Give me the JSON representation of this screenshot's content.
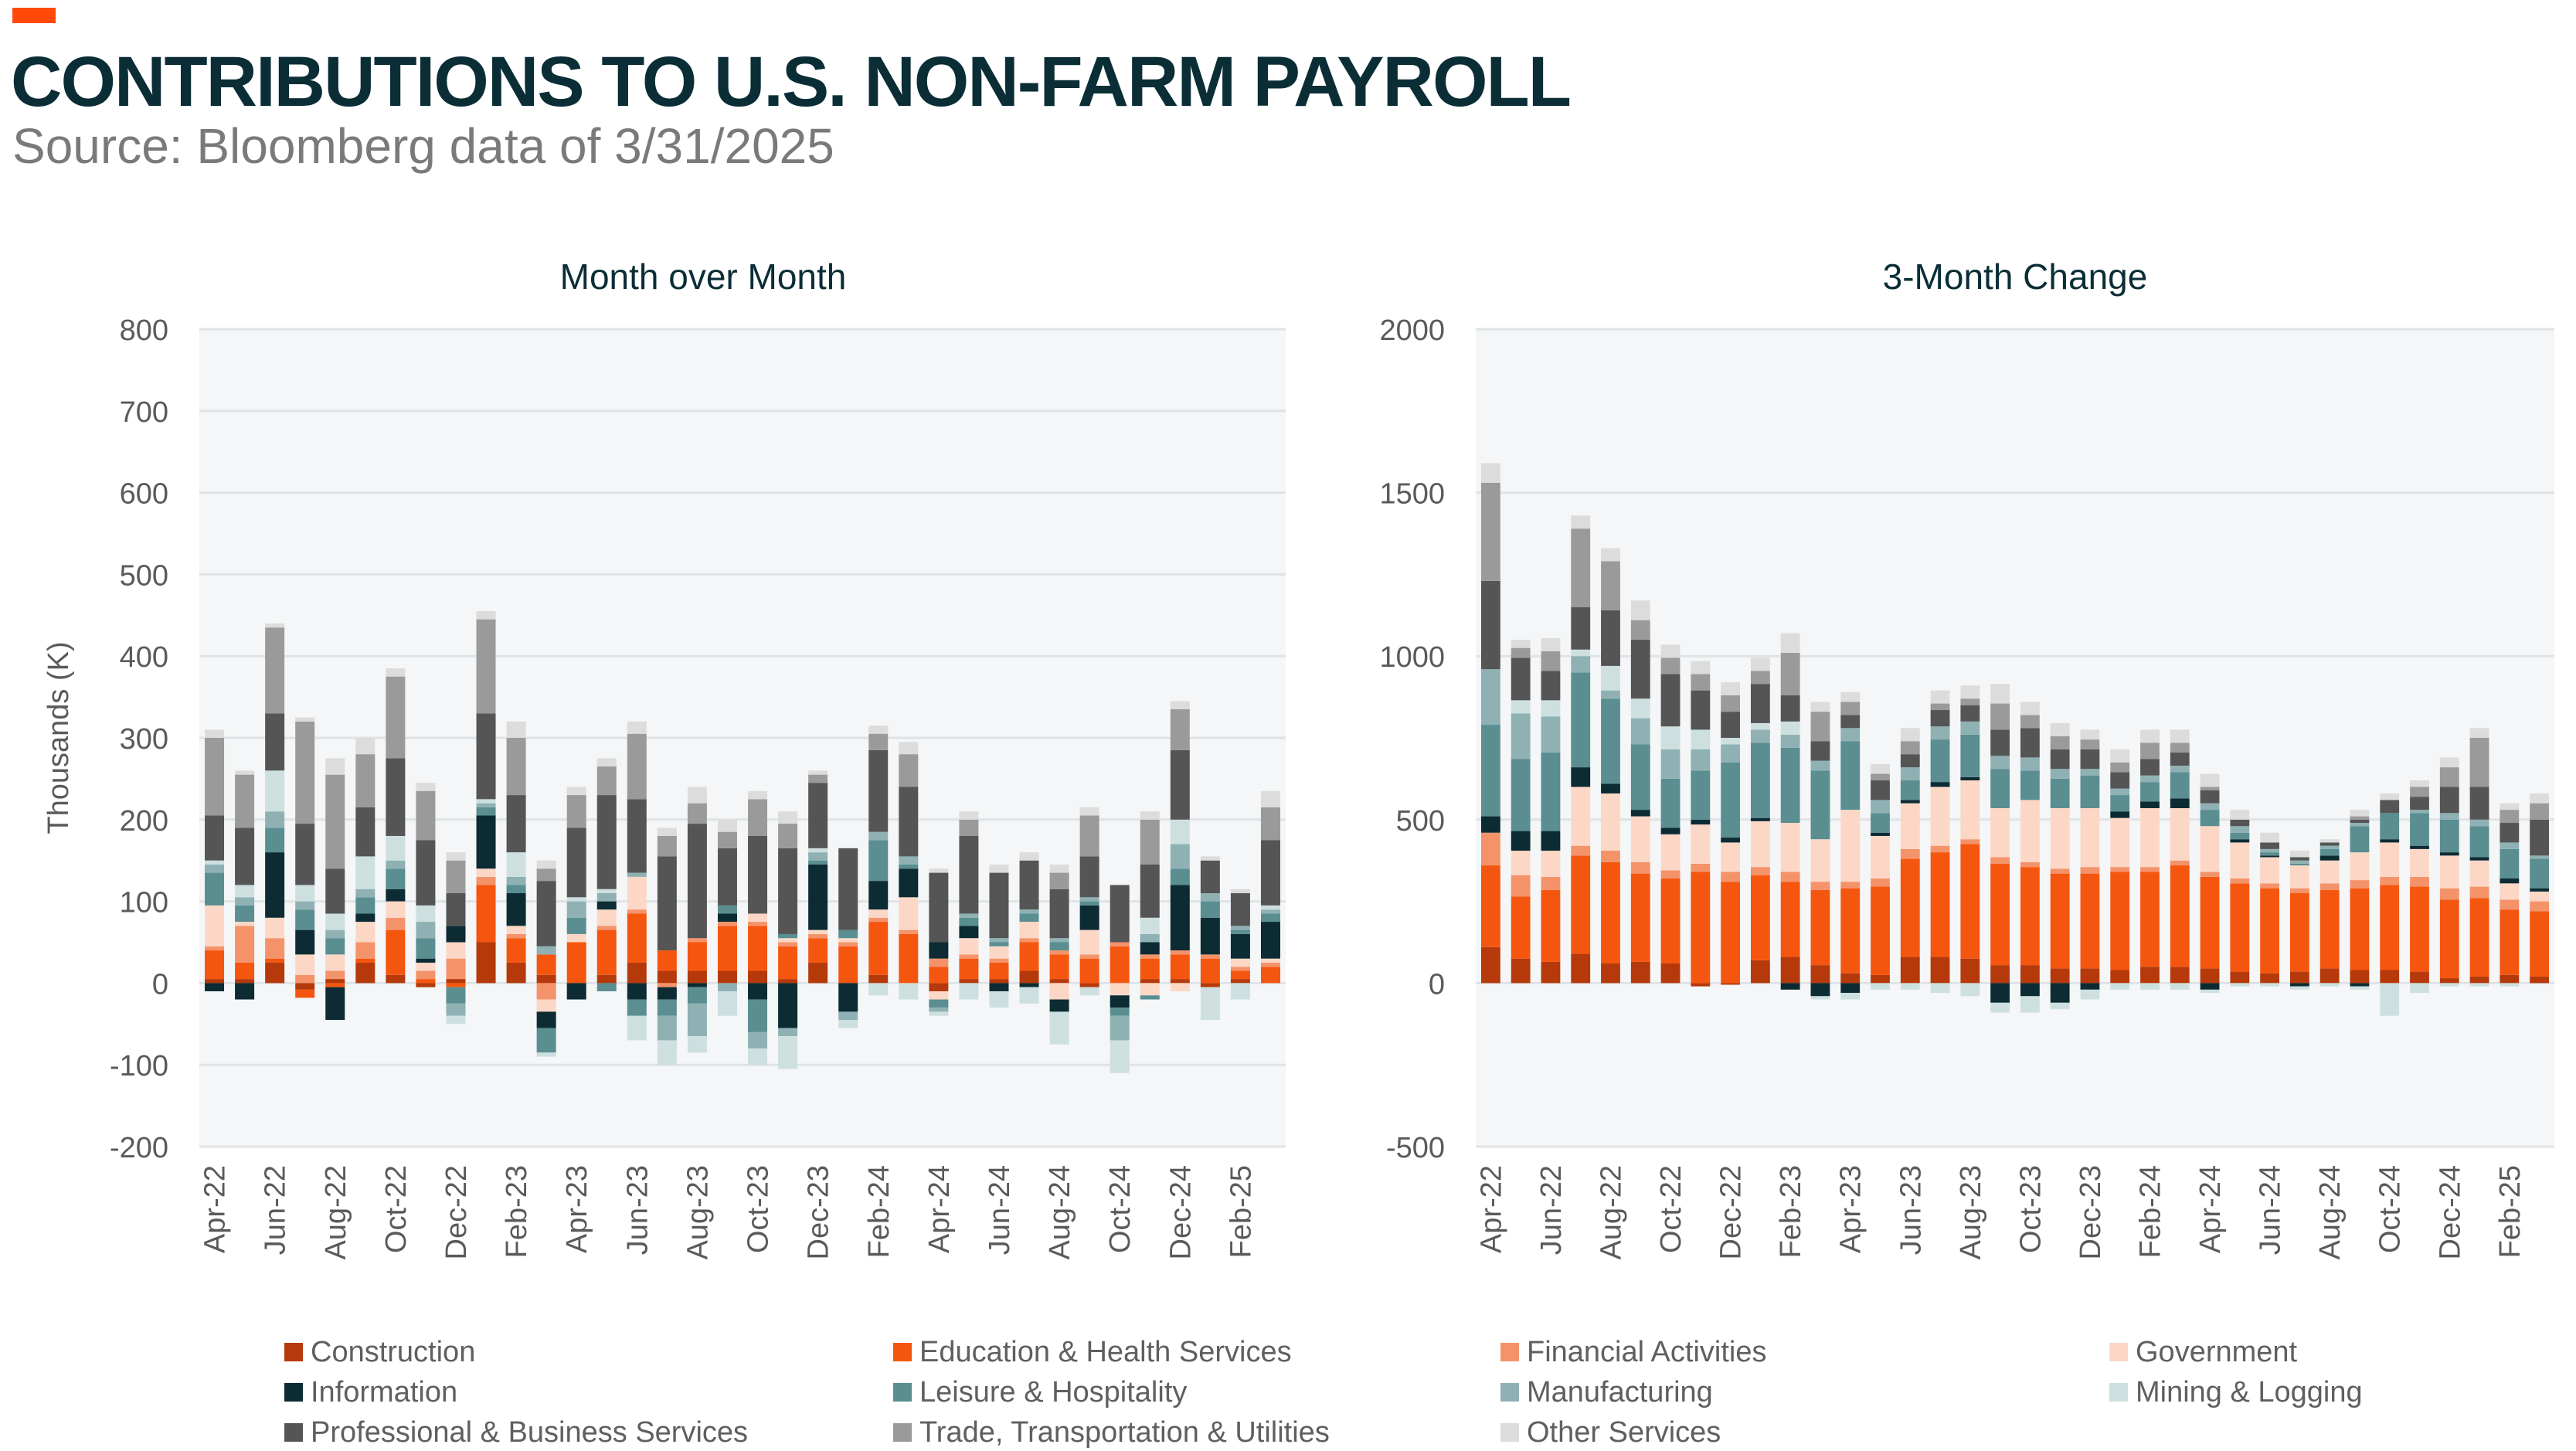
{
  "header": {
    "title": "CONTRIBUTIONS TO U.S. NON-FARM PAYROLL",
    "subtitle": "Source: Bloomberg data of 3/31/2025",
    "accent_color": "#ff4a0a"
  },
  "colors": {
    "title": "#0b2e36",
    "plot_bg": "#f4f6f7",
    "grid": "#dfe3e5",
    "axis_text": "#5a5a5a"
  },
  "legend": [
    {
      "name": "Construction",
      "color": "#b5390b"
    },
    {
      "name": "Education & Health Services",
      "color": "#f5560f"
    },
    {
      "name": "Financial Activities",
      "color": "#f4936a"
    },
    {
      "name": "Government",
      "color": "#fcd7c6"
    },
    {
      "name": "Information",
      "color": "#0c2b33"
    },
    {
      "name": "Leisure & Hospitality",
      "color": "#5a8e91"
    },
    {
      "name": "Manufacturing",
      "color": "#8fb1b3"
    },
    {
      "name": "Mining & Logging",
      "color": "#cde0df"
    },
    {
      "name": "Professional & Business Services",
      "color": "#555555"
    },
    {
      "name": "Trade, Transportation & Utilities",
      "color": "#9a9a9a"
    },
    {
      "name": "Other Services",
      "color": "#dcdcdc"
    }
  ],
  "chart_data": [
    {
      "type": "bar",
      "stacked": true,
      "title": "Month over Month",
      "ylabel": "Thousands (K)",
      "ylim": [
        -200,
        800
      ],
      "yticks": [
        "800",
        "700",
        "600",
        "500",
        "400",
        "300",
        "200",
        "100",
        "0",
        "-100",
        "-200"
      ],
      "tick_values": [
        800,
        700,
        600,
        500,
        400,
        300,
        200,
        100,
        0,
        -100,
        -200
      ],
      "grid": true,
      "categories": [
        "Apr-22",
        "May-22",
        "Jun-22",
        "Jul-22",
        "Aug-22",
        "Sep-22",
        "Oct-22",
        "Nov-22",
        "Dec-22",
        "Jan-23",
        "Feb-23",
        "Mar-23",
        "Apr-23",
        "May-23",
        "Jun-23",
        "Jul-23",
        "Aug-23",
        "Sep-23",
        "Oct-23",
        "Nov-23",
        "Dec-23",
        "Jan-24",
        "Feb-24",
        "Mar-24",
        "Apr-24",
        "May-24",
        "Jun-24",
        "Jul-24",
        "Aug-24",
        "Sep-24",
        "Oct-24",
        "Nov-24",
        "Dec-24",
        "Jan-25",
        "Feb-25",
        "Mar-25"
      ],
      "tick_labels": [
        "Apr-22",
        "Jun-22",
        "Aug-22",
        "Oct-22",
        "Dec-22",
        "Feb-23",
        "Apr-23",
        "Jun-23",
        "Aug-23",
        "Oct-23",
        "Dec-23",
        "Feb-24",
        "Apr-24",
        "Jun-24",
        "Aug-24",
        "Oct-24",
        "Dec-24",
        "Feb-25"
      ],
      "series": [
        {
          "name": "Construction",
          "values": [
            5,
            5,
            25,
            -8,
            5,
            25,
            10,
            -5,
            5,
            50,
            25,
            10,
            0,
            10,
            25,
            15,
            15,
            15,
            15,
            5,
            25,
            0,
            10,
            0,
            -10,
            5,
            5,
            15,
            5,
            -5,
            0,
            5,
            5,
            -5,
            5,
            0
          ]
        },
        {
          "name": "Education & Health Services",
          "values": [
            35,
            20,
            5,
            -10,
            -5,
            5,
            55,
            5,
            -5,
            70,
            30,
            25,
            50,
            55,
            60,
            25,
            35,
            55,
            55,
            40,
            30,
            45,
            65,
            60,
            20,
            25,
            20,
            35,
            30,
            30,
            45,
            25,
            30,
            30,
            10,
            20
          ]
        },
        {
          "name": "Financial Activities",
          "values": [
            5,
            45,
            25,
            10,
            10,
            20,
            15,
            10,
            25,
            10,
            5,
            -20,
            0,
            5,
            5,
            -5,
            5,
            5,
            5,
            5,
            5,
            5,
            5,
            5,
            10,
            5,
            5,
            5,
            5,
            5,
            5,
            5,
            5,
            5,
            5,
            5
          ]
        },
        {
          "name": "Government",
          "values": [
            50,
            5,
            25,
            25,
            20,
            25,
            20,
            10,
            20,
            10,
            10,
            -15,
            10,
            20,
            40,
            0,
            0,
            0,
            10,
            5,
            5,
            5,
            10,
            40,
            -10,
            20,
            15,
            20,
            -20,
            30,
            -15,
            -15,
            -10,
            0,
            10,
            5
          ]
        },
        {
          "name": "Information",
          "values": [
            -10,
            -20,
            80,
            30,
            -40,
            10,
            15,
            5,
            20,
            65,
            40,
            -20,
            -20,
            10,
            -20,
            -15,
            -5,
            10,
            -20,
            -55,
            80,
            -35,
            35,
            35,
            20,
            15,
            -10,
            -5,
            -15,
            30,
            -15,
            15,
            80,
            45,
            30,
            45
          ]
        },
        {
          "name": "Leisure & Hospitality",
          "values": [
            40,
            20,
            30,
            25,
            20,
            20,
            25,
            25,
            -20,
            10,
            10,
            -30,
            20,
            -10,
            -20,
            -20,
            -20,
            10,
            -40,
            5,
            5,
            10,
            50,
            5,
            -10,
            10,
            5,
            10,
            10,
            5,
            -10,
            -5,
            20,
            20,
            5,
            10
          ]
        },
        {
          "name": "Manufacturing",
          "values": [
            10,
            10,
            20,
            10,
            10,
            10,
            10,
            20,
            -15,
            5,
            10,
            10,
            20,
            10,
            5,
            -30,
            -40,
            -10,
            -20,
            -10,
            10,
            -10,
            10,
            10,
            -5,
            5,
            5,
            5,
            5,
            5,
            -30,
            10,
            30,
            10,
            5,
            5
          ]
        },
        {
          "name": "Mining & Logging",
          "values": [
            5,
            15,
            50,
            20,
            20,
            40,
            30,
            20,
            -10,
            5,
            30,
            -5,
            5,
            5,
            -30,
            -30,
            -20,
            -30,
            -20,
            -40,
            5,
            -10,
            -15,
            -20,
            -5,
            -20,
            -20,
            -20,
            -40,
            -10,
            -40,
            20,
            30,
            -40,
            -20,
            5
          ]
        },
        {
          "name": "Professional & Business Services",
          "values": [
            55,
            70,
            70,
            75,
            55,
            60,
            95,
            80,
            40,
            105,
            70,
            80,
            85,
            115,
            90,
            115,
            140,
            70,
            95,
            105,
            80,
            100,
            100,
            85,
            85,
            95,
            80,
            60,
            60,
            50,
            70,
            65,
            85,
            40,
            40,
            80
          ]
        },
        {
          "name": "Trade, Transportation & Utilities",
          "values": [
            95,
            65,
            105,
            125,
            115,
            65,
            100,
            60,
            40,
            115,
            70,
            15,
            40,
            35,
            80,
            25,
            25,
            20,
            45,
            30,
            10,
            0,
            20,
            40,
            0,
            20,
            0,
            0,
            20,
            50,
            0,
            55,
            50,
            0,
            0,
            40
          ]
        },
        {
          "name": "Other Services",
          "values": [
            10,
            5,
            5,
            5,
            20,
            20,
            10,
            10,
            10,
            10,
            20,
            10,
            10,
            10,
            15,
            10,
            20,
            15,
            10,
            15,
            5,
            0,
            10,
            15,
            5,
            10,
            10,
            10,
            10,
            10,
            0,
            10,
            10,
            5,
            5,
            20
          ]
        }
      ]
    },
    {
      "type": "bar",
      "stacked": true,
      "title": "3-Month Change",
      "ylabel": "",
      "ylim": [
        -500,
        2000
      ],
      "yticks": [
        "2000",
        "1500",
        "1000",
        "500",
        "0",
        "-500"
      ],
      "tick_values": [
        2000,
        1500,
        1000,
        500,
        0,
        -500
      ],
      "grid": true,
      "categories": [
        "Apr-22",
        "May-22",
        "Jun-22",
        "Jul-22",
        "Aug-22",
        "Sep-22",
        "Oct-22",
        "Nov-22",
        "Dec-22",
        "Jan-23",
        "Feb-23",
        "Mar-23",
        "Apr-23",
        "May-23",
        "Jun-23",
        "Jul-23",
        "Aug-23",
        "Sep-23",
        "Oct-23",
        "Nov-23",
        "Dec-23",
        "Jan-24",
        "Feb-24",
        "Mar-24",
        "Apr-24",
        "May-24",
        "Jun-24",
        "Jul-24",
        "Aug-24",
        "Sep-24",
        "Oct-24",
        "Nov-24",
        "Dec-24",
        "Jan-25",
        "Feb-25",
        "Mar-25"
      ],
      "tick_labels": [
        "Apr-22",
        "Jun-22",
        "Aug-22",
        "Oct-22",
        "Dec-22",
        "Feb-23",
        "Apr-23",
        "Jun-23",
        "Aug-23",
        "Oct-23",
        "Dec-23",
        "Feb-24",
        "Apr-24",
        "Jun-24",
        "Aug-24",
        "Oct-24",
        "Dec-24",
        "Feb-25"
      ],
      "series": [
        {
          "name": "Construction",
          "values": [
            110,
            75,
            65,
            90,
            60,
            65,
            60,
            -10,
            -5,
            70,
            80,
            55,
            30,
            25,
            80,
            80,
            75,
            55,
            55,
            45,
            45,
            40,
            50,
            50,
            45,
            35,
            30,
            35,
            45,
            40,
            40,
            35,
            15,
            20,
            25,
            20
          ]
        },
        {
          "name": "Education & Health Services",
          "values": [
            250,
            190,
            220,
            300,
            310,
            270,
            260,
            340,
            310,
            260,
            230,
            230,
            260,
            270,
            300,
            320,
            350,
            310,
            300,
            290,
            290,
            300,
            290,
            310,
            280,
            270,
            260,
            240,
            240,
            250,
            260,
            260,
            240,
            240,
            200,
            200
          ]
        },
        {
          "name": "Financial Activities",
          "values": [
            100,
            65,
            40,
            30,
            35,
            35,
            25,
            25,
            30,
            25,
            30,
            25,
            20,
            25,
            30,
            20,
            15,
            20,
            15,
            15,
            20,
            15,
            15,
            15,
            15,
            15,
            15,
            15,
            20,
            25,
            25,
            30,
            35,
            35,
            30,
            30
          ]
        },
        {
          "name": "Government",
          "values": [
            0,
            75,
            80,
            180,
            175,
            140,
            110,
            120,
            90,
            140,
            150,
            130,
            220,
            130,
            140,
            180,
            180,
            150,
            190,
            185,
            180,
            150,
            180,
            160,
            140,
            110,
            80,
            70,
            70,
            85,
            105,
            85,
            100,
            80,
            50,
            30
          ]
        },
        {
          "name": "Information",
          "values": [
            50,
            60,
            60,
            60,
            30,
            20,
            20,
            15,
            15,
            10,
            -20,
            -40,
            -30,
            10,
            10,
            15,
            10,
            -60,
            -40,
            -60,
            -20,
            20,
            20,
            30,
            -20,
            10,
            5,
            -10,
            15,
            -10,
            10,
            10,
            10,
            10,
            15,
            10
          ]
        },
        {
          "name": "Leisure & Hospitality",
          "values": [
            280,
            220,
            240,
            290,
            260,
            200,
            150,
            150,
            230,
            230,
            230,
            210,
            210,
            60,
            60,
            130,
            130,
            120,
            90,
            90,
            100,
            50,
            60,
            80,
            50,
            20,
            10,
            5,
            20,
            80,
            80,
            100,
            100,
            95,
            90,
            90
          ]
        },
        {
          "name": "Manufacturing",
          "values": [
            170,
            140,
            110,
            50,
            25,
            80,
            90,
            65,
            55,
            40,
            40,
            30,
            40,
            40,
            40,
            40,
            40,
            40,
            40,
            30,
            20,
            20,
            20,
            20,
            20,
            20,
            10,
            10,
            10,
            10,
            0,
            10,
            20,
            20,
            20,
            10
          ]
        },
        {
          "name": "Mining & Logging",
          "values": [
            0,
            40,
            50,
            20,
            75,
            60,
            70,
            60,
            20,
            20,
            40,
            -10,
            -20,
            -20,
            -20,
            -30,
            -40,
            -30,
            -50,
            -20,
            -30,
            -20,
            -20,
            -20,
            -10,
            -10,
            -10,
            -10,
            -10,
            -10,
            -100,
            -30,
            -10,
            -10,
            -10,
            0
          ]
        },
        {
          "name": "Professional & Business Services",
          "values": [
            270,
            130,
            90,
            130,
            170,
            180,
            160,
            120,
            80,
            120,
            80,
            60,
            40,
            60,
            40,
            50,
            50,
            80,
            90,
            60,
            60,
            50,
            50,
            40,
            40,
            20,
            20,
            10,
            10,
            10,
            40,
            40,
            80,
            100,
            60,
            110
          ]
        },
        {
          "name": "Trade, Transportation & Utilities",
          "values": [
            300,
            30,
            60,
            240,
            150,
            60,
            50,
            50,
            50,
            40,
            130,
            90,
            40,
            20,
            40,
            20,
            20,
            80,
            40,
            40,
            30,
            30,
            50,
            30,
            10,
            0,
            0,
            0,
            0,
            10,
            0,
            30,
            60,
            150,
            40,
            50
          ]
        },
        {
          "name": "Other Services",
          "values": [
            60,
            25,
            40,
            40,
            40,
            60,
            40,
            40,
            40,
            40,
            60,
            30,
            30,
            30,
            40,
            40,
            40,
            60,
            40,
            40,
            30,
            40,
            40,
            40,
            40,
            30,
            30,
            20,
            10,
            20,
            20,
            20,
            30,
            30,
            20,
            30
          ]
        }
      ]
    }
  ]
}
